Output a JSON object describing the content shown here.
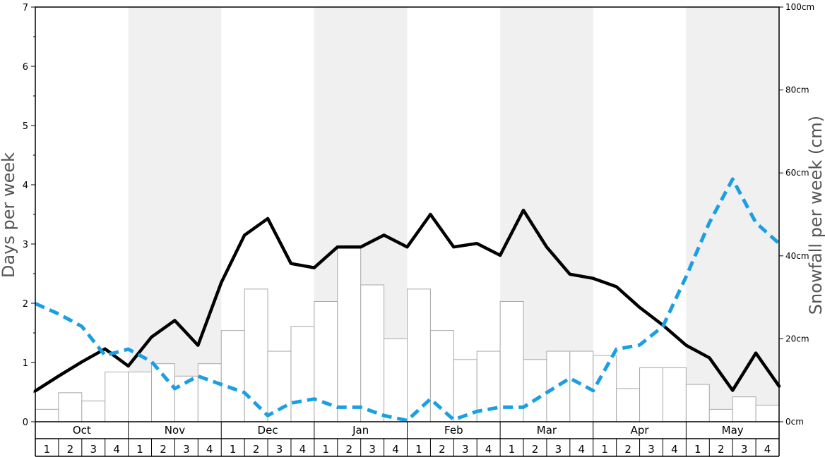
{
  "chart_data": {
    "type": "bar",
    "months": [
      "Oct",
      "Nov",
      "Dec",
      "Jan",
      "Feb",
      "Mar",
      "Apr",
      "May"
    ],
    "weeks": [
      "1",
      "2",
      "3",
      "4"
    ],
    "left_axis": {
      "label": "Days per week",
      "ylim": [
        0,
        7
      ],
      "ticks": [
        "0",
        "1",
        "2",
        "3",
        "4",
        "5",
        "6",
        "7"
      ]
    },
    "right_axis": {
      "label": "Snowfall per week (cm)",
      "ylim": [
        0,
        100
      ],
      "ticks": [
        "0cm",
        "20cm",
        "40cm",
        "60cm",
        "80cm",
        "100cm"
      ]
    },
    "grid": false,
    "series": [
      {
        "kind": "bar",
        "axis": "right",
        "values": [
          3,
          7,
          5,
          12,
          12,
          14,
          11,
          14,
          22,
          32,
          17,
          23,
          29,
          42,
          33,
          20,
          32,
          22,
          15,
          17,
          29,
          15,
          17,
          17,
          16,
          8,
          13,
          13,
          9,
          3,
          6,
          4
        ]
      },
      {
        "kind": "line",
        "axis": "left",
        "style": "solid",
        "color": "#000000",
        "values": [
          0.52,
          0.77,
          1.01,
          1.23,
          0.94,
          1.43,
          1.71,
          1.29,
          2.35,
          3.15,
          3.43,
          2.67,
          2.6,
          2.95,
          2.95,
          3.15,
          2.95,
          3.5,
          2.95,
          3.01,
          2.81,
          3.57,
          2.95,
          2.49,
          2.42,
          2.28,
          1.93,
          1.63,
          1.29,
          1.08,
          0.53,
          1.16,
          0.6
        ]
      },
      {
        "kind": "line",
        "axis": "right",
        "style": "dashed",
        "color": "#1a9fe4",
        "values": [
          28.5,
          26,
          23,
          16,
          17.5,
          14.5,
          8,
          11,
          9,
          7,
          1.5,
          4.5,
          5.5,
          3.5,
          3.5,
          1.5,
          0.3,
          5.5,
          0.5,
          2.5,
          3.5,
          3.5,
          7,
          10.5,
          7.5,
          17.5,
          18.5,
          23,
          35,
          48,
          58.5,
          48,
          43
        ]
      }
    ]
  }
}
